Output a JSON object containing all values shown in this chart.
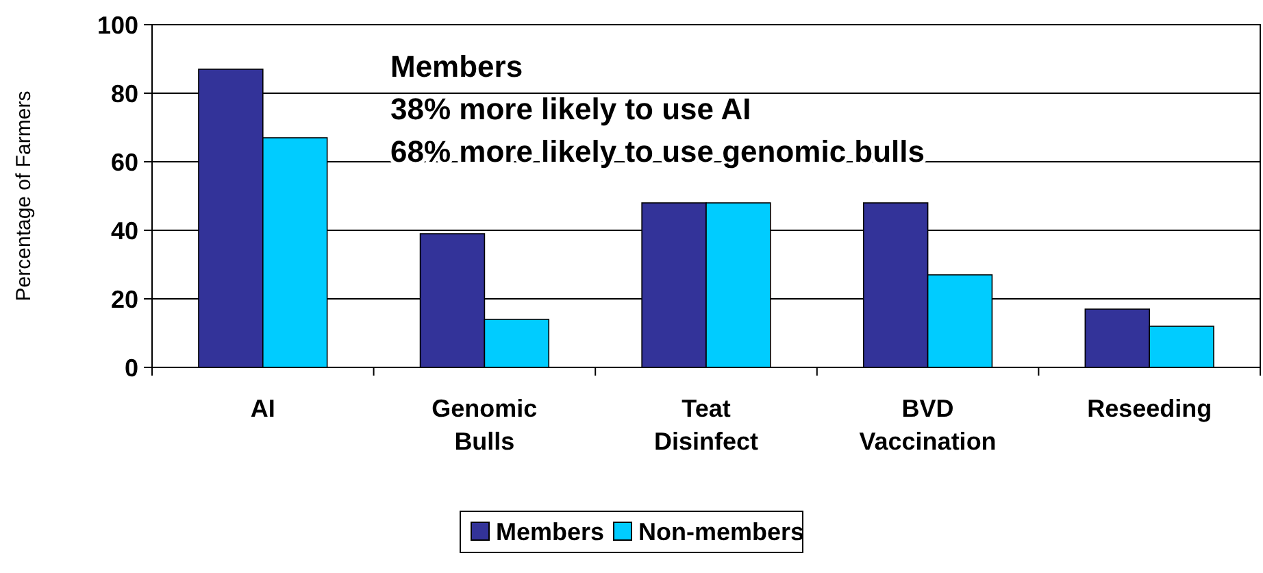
{
  "chart_data": {
    "type": "bar",
    "ylabel": "Percentage of Farmers",
    "categories": [
      "AI",
      "Genomic Bulls",
      "Teat Disinfect",
      "BVD Vaccination",
      "Reseeding"
    ],
    "series": [
      {
        "name": "Members",
        "color": "#333399",
        "values": [
          87,
          39,
          48,
          48,
          17
        ]
      },
      {
        "name": "Non-members",
        "color": "#00ccff",
        "values": [
          67,
          14,
          48,
          27,
          12
        ]
      }
    ],
    "ylim": [
      0,
      100
    ],
    "yticks": [
      0,
      20,
      40,
      60,
      80,
      100
    ],
    "grid": "y",
    "legend": "bottom",
    "annotations": [
      "Members",
      "38% more likely to use AI",
      "68% more likely to use genomic bulls"
    ]
  }
}
